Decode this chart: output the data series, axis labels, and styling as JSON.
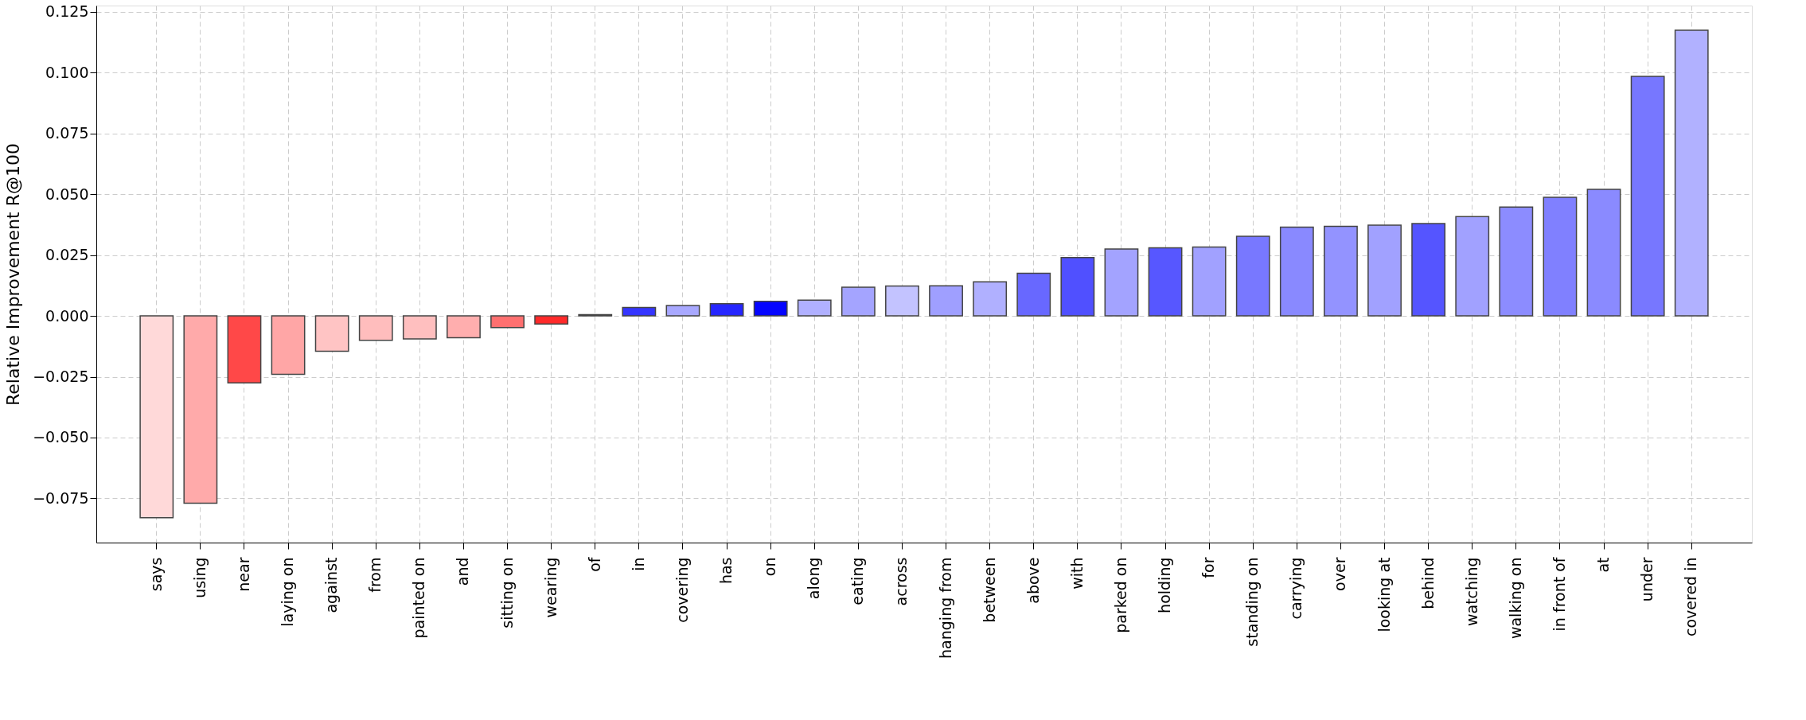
{
  "chart_data": {
    "type": "bar",
    "ylabel": "Relative Improvement R@100",
    "categories": [
      "says",
      "using",
      "near",
      "laying on",
      "against",
      "from",
      "painted on",
      "and",
      "sitting on",
      "wearing",
      "of",
      "in",
      "covering",
      "has",
      "on",
      "along",
      "eating",
      "across",
      "hanging from",
      "between",
      "above",
      "with",
      "parked on",
      "holding",
      "for",
      "standing on",
      "carrying",
      "over",
      "looking at",
      "behind",
      "watching",
      "walking on",
      "in front of",
      "at",
      "under",
      "covered in"
    ],
    "values": [
      -0.083,
      -0.077,
      -0.0275,
      -0.024,
      -0.0145,
      -0.01,
      -0.0095,
      -0.009,
      -0.0048,
      -0.0033,
      0.0005,
      0.0035,
      0.0043,
      0.005,
      0.006,
      0.0065,
      0.0118,
      0.0123,
      0.0124,
      0.014,
      0.0175,
      0.024,
      0.0275,
      0.028,
      0.0283,
      0.0327,
      0.0365,
      0.0368,
      0.0373,
      0.038,
      0.0408,
      0.0448,
      0.0488,
      0.052,
      0.0985,
      0.1175
    ],
    "colors": [
      "#ffd9d9",
      "#ffaaaa",
      "#ff4848",
      "#ffa6a6",
      "#ffc4c4",
      "#ffbdbd",
      "#ffbfbf",
      "#ffaeae",
      "#ff7070",
      "#ff2a2a",
      "#9b9bff",
      "#3535ff",
      "#a8a8ff",
      "#2626ff",
      "#0505ff",
      "#b0b0ff",
      "#a4a4ff",
      "#c3c3ff",
      "#9f9fff",
      "#b0b0ff",
      "#6868ff",
      "#5050ff",
      "#a3a3ff",
      "#5757ff",
      "#a1a1ff",
      "#7878ff",
      "#8989ff",
      "#9393ff",
      "#a1a1ff",
      "#5555ff",
      "#a1a1ff",
      "#8c8cff",
      "#8080ff",
      "#8a8aff",
      "#7777ff",
      "#b1b1ff"
    ],
    "ylim": [
      -0.0932,
      0.1276
    ],
    "yticks": [
      {
        "value": -0.075,
        "label": "−0.075"
      },
      {
        "value": -0.05,
        "label": "−0.050"
      },
      {
        "value": -0.025,
        "label": "−0.025"
      },
      {
        "value": 0,
        "label": "0.000"
      },
      {
        "value": 0.025,
        "label": "0.025"
      },
      {
        "value": 0.05,
        "label": "0.050"
      },
      {
        "value": 0.075,
        "label": "0.075"
      },
      {
        "value": 0.1,
        "label": "0.100"
      },
      {
        "value": 0.125,
        "label": "0.125"
      }
    ],
    "grid": true
  }
}
